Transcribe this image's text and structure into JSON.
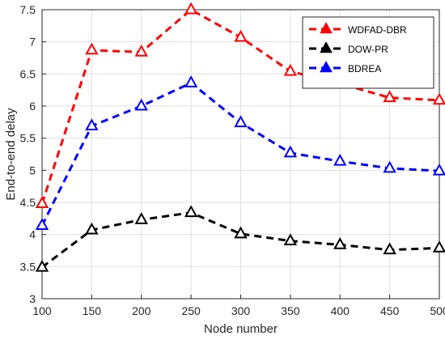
{
  "chart_data": {
    "type": "line",
    "title": "",
    "xlabel": "Node number",
    "ylabel": "End-to-end delay",
    "x": [
      100,
      150,
      200,
      250,
      300,
      350,
      400,
      450,
      500
    ],
    "xlim": [
      100,
      500
    ],
    "ylim": [
      3,
      7.5
    ],
    "xticks": [
      "100",
      "150",
      "200",
      "250",
      "300",
      "350",
      "400",
      "450",
      "500"
    ],
    "yticks": [
      "3",
      "3.5",
      "4",
      "4.5",
      "5",
      "5.5",
      "6",
      "6.5",
      "7",
      "7.5"
    ],
    "grid": true,
    "legend_position": "top-right",
    "series": [
      {
        "name": "WDFAD-DBR",
        "color": "#ff0000",
        "marker": "triangle",
        "line_style": "dashed",
        "values": [
          4.48,
          6.87,
          6.84,
          7.5,
          7.07,
          6.54,
          6.35,
          6.13,
          6.09
        ]
      },
      {
        "name": "DOW-PR",
        "color": "#000000",
        "marker": "triangle",
        "line_style": "dashed",
        "values": [
          3.49,
          4.07,
          4.23,
          4.34,
          4.01,
          3.9,
          3.84,
          3.76,
          3.79
        ]
      },
      {
        "name": "BDREA",
        "color": "#0000ff",
        "marker": "triangle",
        "line_style": "dashed",
        "values": [
          4.14,
          5.69,
          6.0,
          6.36,
          5.74,
          5.27,
          5.14,
          5.03,
          4.99
        ]
      }
    ]
  }
}
